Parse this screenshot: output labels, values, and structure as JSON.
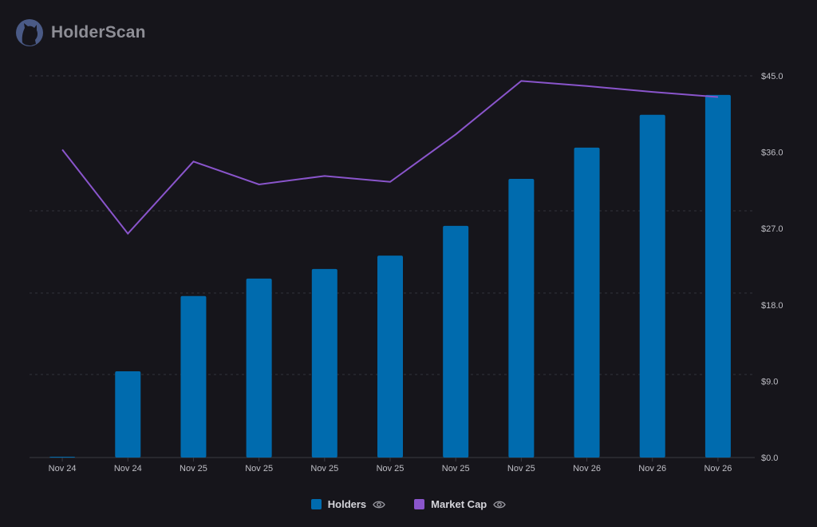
{
  "brand": {
    "name": "HolderScan",
    "logo_icon": "cat-icon"
  },
  "colors": {
    "holders": "#006bae",
    "market_cap": "#8a55cc",
    "background": "#16151b"
  },
  "legend": [
    {
      "label": "Holders",
      "color": "#006bae",
      "icon": "eye-icon"
    },
    {
      "label": "Market Cap",
      "color": "#8a55cc",
      "icon": "eye-icon"
    }
  ],
  "chart_data": {
    "type": "bar+line",
    "categories": [
      "Nov 24",
      "Nov 24",
      "Nov 25",
      "Nov 25",
      "Nov 25",
      "Nov 25",
      "Nov 25",
      "Nov 25",
      "Nov 26",
      "Nov 26",
      "Nov 26"
    ],
    "series": [
      {
        "name": "Holders",
        "type": "bar",
        "axis": "hidden-left",
        "values_fraction_of_axis_max": [
          0.002,
          0.226,
          0.423,
          0.469,
          0.494,
          0.529,
          0.607,
          0.73,
          0.812,
          0.898,
          0.95
        ]
      },
      {
        "name": "Market Cap",
        "type": "line",
        "axis": "right",
        "values": [
          36.3,
          26.4,
          34.9,
          32.2,
          33.2,
          32.5,
          38.1,
          44.4,
          43.8,
          43.1,
          42.5
        ]
      }
    ],
    "right_axis": {
      "ticks": [
        "$0.0",
        "$9.0",
        "$18.0",
        "$27.0",
        "$36.0",
        "$45.0"
      ],
      "values": [
        0,
        9,
        18,
        27,
        36,
        45
      ],
      "ylim": [
        0,
        45
      ]
    },
    "grid": true,
    "legend_position": "bottom"
  }
}
